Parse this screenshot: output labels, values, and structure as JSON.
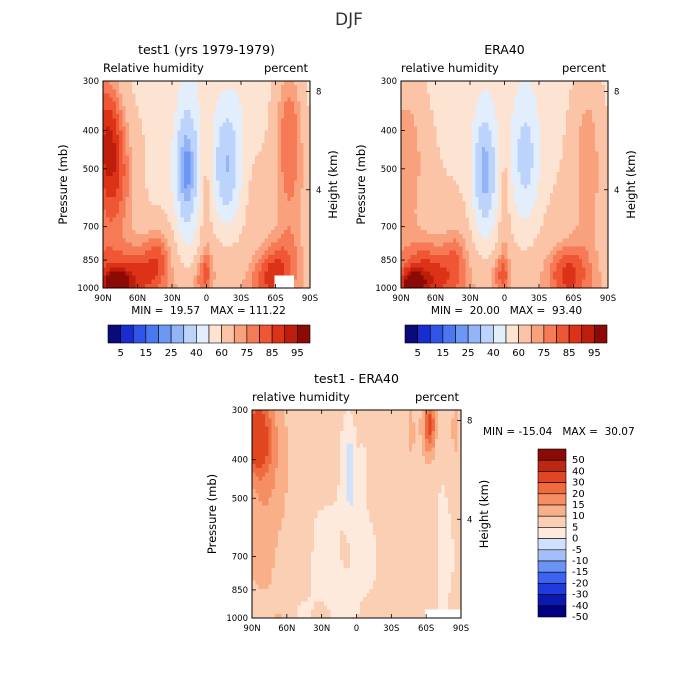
{
  "figure_title": "DJF",
  "chart_data": [
    {
      "type": "heatmap",
      "title": "test1 (yrs 1979-1979)",
      "subtitle_left": "Relative humidity",
      "subtitle_right": "percent",
      "xlabel": "",
      "ylabel": "Pressure (mb)",
      "ylabel_right": "Height (km)",
      "x_ticks": [
        "90N",
        "60N",
        "30N",
        "0",
        "30S",
        "60S",
        "90S"
      ],
      "x_range": [
        90,
        -90
      ],
      "y_ticks": [
        300,
        400,
        500,
        700,
        850,
        1000
      ],
      "y_range": [
        1000,
        300
      ],
      "height_ticks": [
        4,
        8
      ],
      "stats": "MIN =  19.57   MAX = 111.22",
      "colorbar_orientation": "horizontal",
      "colorbar_labels": [
        "5",
        "15",
        "25",
        "40",
        "60",
        "75",
        "85",
        "95"
      ],
      "colors": [
        "#0a0a7a",
        "#1a2bd0",
        "#2f55e8",
        "#4b78f0",
        "#6d97f4",
        "#93b5f7",
        "#bcd3fb",
        "#e3eefd",
        "#fde3d2",
        "#fcc4a6",
        "#f9a07c",
        "#f57a55",
        "#ee5634",
        "#dc3318",
        "#bf1d0b",
        "#8c0a05"
      ],
      "levels": [
        0,
        5,
        10,
        15,
        20,
        25,
        30,
        40,
        50,
        60,
        70,
        75,
        80,
        85,
        90,
        95
      ],
      "missing_region": "near-surface, 60S-75S (below ground)"
    },
    {
      "type": "heatmap",
      "title": "ERA40",
      "subtitle_left": "relative humidity",
      "subtitle_right": "percent",
      "xlabel": "",
      "ylabel": "Pressure (mb)",
      "ylabel_right": "Height (km)",
      "x_ticks": [
        "90N",
        "60N",
        "30N",
        "0",
        "30S",
        "60S",
        "90S"
      ],
      "x_range": [
        90,
        -90
      ],
      "y_ticks": [
        300,
        400,
        500,
        700,
        850,
        1000
      ],
      "y_range": [
        1000,
        300
      ],
      "height_ticks": [
        4,
        8
      ],
      "stats": "MIN =  20.00   MAX =  93.40",
      "colorbar_orientation": "horizontal",
      "colorbar_labels": [
        "5",
        "15",
        "25",
        "40",
        "60",
        "75",
        "85",
        "95"
      ],
      "colors": [
        "#0a0a7a",
        "#1a2bd0",
        "#2f55e8",
        "#4b78f0",
        "#6d97f4",
        "#93b5f7",
        "#bcd3fb",
        "#e3eefd",
        "#fde3d2",
        "#fcc4a6",
        "#f9a07c",
        "#f57a55",
        "#ee5634",
        "#dc3318",
        "#bf1d0b",
        "#8c0a05"
      ],
      "levels": [
        0,
        5,
        10,
        15,
        20,
        25,
        30,
        40,
        50,
        60,
        70,
        75,
        80,
        85,
        90,
        95
      ]
    },
    {
      "type": "heatmap",
      "title": "test1 - ERA40",
      "subtitle_left": "relative humidity",
      "subtitle_right": "percent",
      "xlabel": "",
      "ylabel": "Pressure (mb)",
      "ylabel_right": "Height (km)",
      "x_ticks": [
        "90N",
        "60N",
        "30N",
        "0",
        "30S",
        "60S",
        "90S"
      ],
      "x_range": [
        90,
        -90
      ],
      "y_ticks": [
        300,
        400,
        500,
        700,
        850,
        1000
      ],
      "y_range": [
        1000,
        300
      ],
      "height_ticks": [
        4,
        8
      ],
      "stats": "MIN = -15.04   MAX =  30.07",
      "colorbar_orientation": "vertical",
      "colorbar_labels": [
        "50",
        "40",
        "30",
        "20",
        "15",
        "10",
        "5",
        "0",
        "-5",
        "-10",
        "-15",
        "-20",
        "-30",
        "-40",
        "-50"
      ],
      "colors": [
        "#000080",
        "#0a1ab0",
        "#1f3be0",
        "#3a63f0",
        "#6b93f5",
        "#a4bff8",
        "#d0e2fb",
        "#fdeadd",
        "#fbcfb4",
        "#f9b089",
        "#f58e63",
        "#f06a3f",
        "#e04620",
        "#bd2610",
        "#8a0b05"
      ],
      "levels": [
        -60,
        -50,
        -40,
        -30,
        -20,
        -15,
        -10,
        -5,
        0,
        5,
        10,
        15,
        20,
        30,
        40,
        50
      ],
      "missing_region": "near-surface, 60S-90S (below ground)"
    }
  ]
}
